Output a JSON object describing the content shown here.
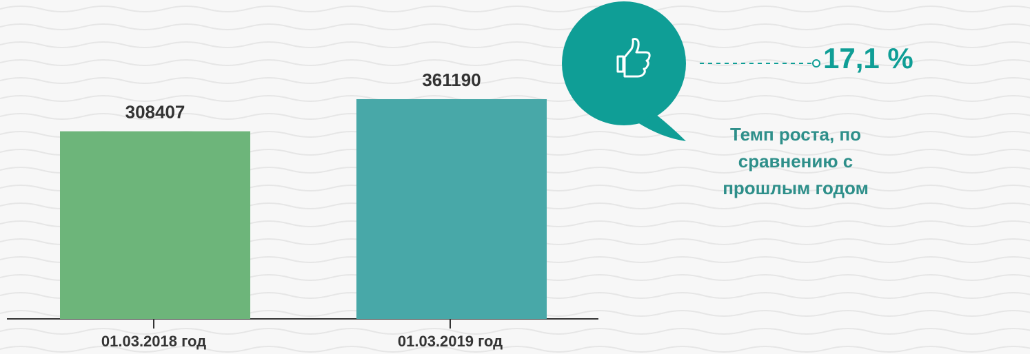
{
  "chart_data": {
    "type": "bar",
    "categories": [
      "01.03.2018 год",
      "01.03.2019 год"
    ],
    "values": [
      308407,
      361190
    ],
    "colors": [
      "#6db57a",
      "#48a8a8"
    ],
    "growth": {
      "value": 17.1,
      "label": "17,1 %"
    },
    "growth_caption": "Темп роста, по сравнению с прошлым годом"
  }
}
